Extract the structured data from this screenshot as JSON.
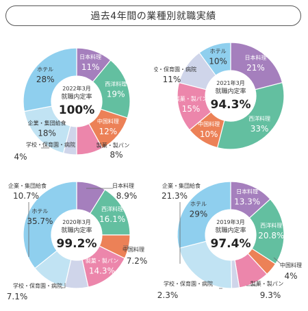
{
  "page": {
    "title": "過去4年間の業種別就職実績"
  },
  "colors": {
    "日本料理": "#a57fbd",
    "西洋料理": "#63bfa0",
    "中国料理": "#ec8157",
    "製菓・製パン": "#ec86ab",
    "学校・保育園・病院": "#cfd5ea",
    "企業・集団給食": "#c1e3f3",
    "ホテル": "#8fcfee"
  },
  "chart_data": [
    {
      "type": "pie",
      "year_label": "2022年3月",
      "rate_label": "就職内定率",
      "rate_value": "100%",
      "categories": [
        "日本料理",
        "西洋料理",
        "中国料理",
        "製菓・製パン",
        "学校・保育園・病院",
        "企業・集団給食",
        "ホテル"
      ],
      "values": [
        11,
        19,
        12,
        8,
        4,
        18,
        28
      ],
      "labels": [
        "11%",
        "19%",
        "12%",
        "8%",
        "4%",
        "18%",
        "28%"
      ]
    },
    {
      "type": "pie",
      "year_label": "2021年3月",
      "rate_label": "就職内定率",
      "rate_value": "94.3%",
      "categories": [
        "日本料理",
        "西洋料理",
        "中国料理",
        "製菓・製パン",
        "学校・保育園・病院",
        "ホテル"
      ],
      "values": [
        21,
        33,
        10,
        15,
        11,
        10
      ],
      "labels": [
        "21%",
        "33%",
        "10%",
        "15%",
        "11%",
        "10%"
      ]
    },
    {
      "type": "pie",
      "year_label": "2020年3月",
      "rate_label": "就職内定率",
      "rate_value": "99.2%",
      "categories": [
        "日本料理",
        "西洋料理",
        "中国料理",
        "製菓・製パン",
        "学校・保育園・病院",
        "企業・集団給食",
        "ホテル"
      ],
      "values": [
        8.9,
        16.1,
        7.2,
        14.3,
        7.1,
        10.7,
        35.7
      ],
      "labels": [
        "8.9%",
        "16.1%",
        "7.2%",
        "14.3%",
        "7.1%",
        "10.7%",
        "35.7%"
      ]
    },
    {
      "type": "pie",
      "year_label": "2019年3月",
      "rate_label": "就職内定率",
      "rate_value": "97.4%",
      "categories": [
        "日本料理",
        "西洋料理",
        "中国料理",
        "製菓・製パン",
        "学校・保育園・病院",
        "企業・集団給食",
        "ホテル"
      ],
      "values": [
        13.3,
        20.8,
        4,
        9.3,
        2.3,
        21.3,
        29
      ],
      "labels": [
        "13.3%",
        "20.8%",
        "4%",
        "9.3%",
        "2.3%",
        "21.3%",
        "29%"
      ]
    }
  ]
}
